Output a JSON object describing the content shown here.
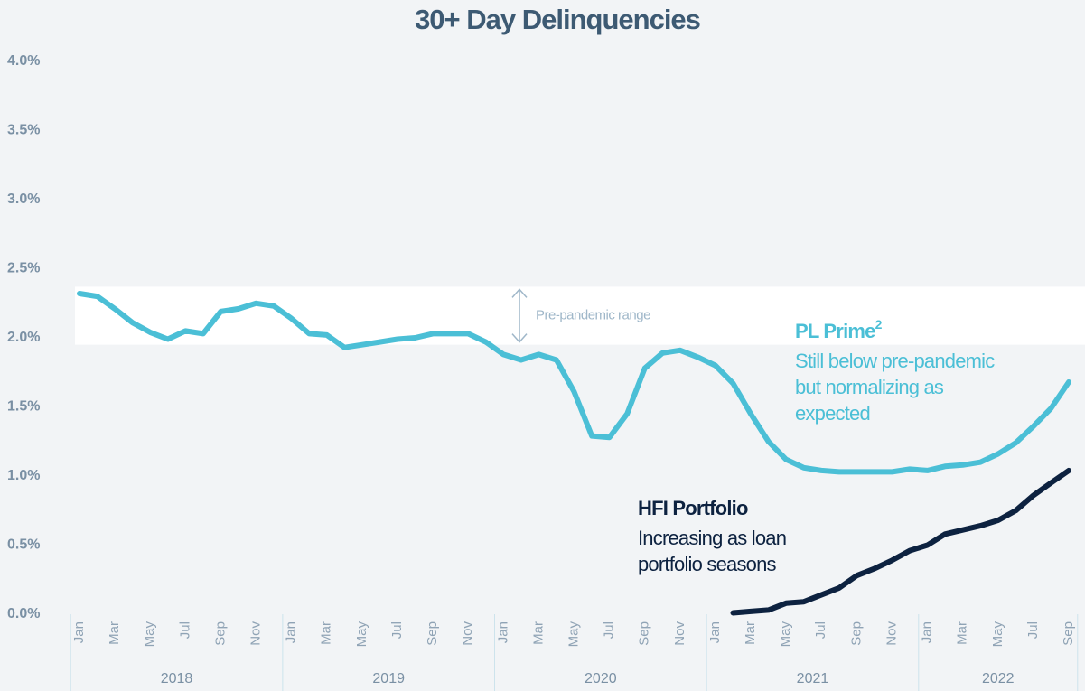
{
  "chart_data": {
    "type": "line",
    "title": "30+ Day Delinquencies",
    "categories": [
      "Jan",
      null,
      "Mar",
      null,
      "May",
      null,
      "Jul",
      null,
      "Sep",
      null,
      "Nov",
      null,
      "Jan",
      null,
      "Mar",
      null,
      "May",
      null,
      "Jul",
      null,
      "Sep",
      null,
      "Nov",
      null,
      "Jan",
      null,
      "Mar",
      null,
      "May",
      null,
      "Jul",
      null,
      "Sep",
      null,
      "Nov",
      null,
      "Jan",
      null,
      "Mar",
      null,
      "May",
      null,
      "Jul",
      null,
      "Sep",
      null,
      "Nov",
      null,
      "Jan",
      null,
      "Mar",
      null,
      "May",
      null,
      "Jul",
      null,
      "Sep"
    ],
    "year_groups": [
      "2018",
      "2019",
      "2020",
      "2021",
      "2022"
    ],
    "series": [
      {
        "name": "PL Prime",
        "name_sup": "2",
        "color": "#4bbfd6",
        "description": [
          "Still below pre-pandemic",
          "but normalizing as",
          "expected"
        ],
        "values": [
          2.32,
          2.3,
          2.21,
          2.11,
          2.04,
          1.99,
          2.05,
          2.03,
          2.19,
          2.21,
          2.25,
          2.23,
          2.14,
          2.03,
          2.02,
          1.93,
          1.95,
          1.97,
          1.99,
          2.0,
          2.03,
          2.03,
          2.03,
          1.97,
          1.88,
          1.84,
          1.88,
          1.84,
          1.61,
          1.29,
          1.28,
          1.45,
          1.78,
          1.89,
          1.91,
          1.86,
          1.8,
          1.67,
          1.45,
          1.25,
          1.12,
          1.06,
          1.04,
          1.03,
          1.03,
          1.03,
          1.03,
          1.05,
          1.04,
          1.07,
          1.08,
          1.1,
          1.16,
          1.24,
          1.36,
          1.49,
          1.68
        ]
      },
      {
        "name": "HFI Portfolio",
        "color": "#0d2240",
        "description": [
          "Increasing as loan",
          "portfolio seasons"
        ],
        "values": [
          null,
          null,
          null,
          null,
          null,
          null,
          null,
          null,
          null,
          null,
          null,
          null,
          null,
          null,
          null,
          null,
          null,
          null,
          null,
          null,
          null,
          null,
          null,
          null,
          null,
          null,
          null,
          null,
          null,
          null,
          null,
          null,
          null,
          null,
          null,
          null,
          null,
          0.01,
          0.02,
          0.03,
          0.08,
          0.09,
          0.14,
          0.19,
          0.28,
          0.33,
          0.39,
          0.46,
          0.5,
          0.58,
          0.61,
          0.64,
          0.68,
          0.75,
          0.86,
          0.95,
          1.04
        ]
      }
    ],
    "range_band": {
      "label": "Pre-pandemic range",
      "values": [
        1.95,
        2.37
      ]
    },
    "ylim": [
      0,
      4
    ],
    "yticks": [
      {
        "value": 0,
        "label": "0.0%"
      },
      {
        "value": 0.5,
        "label": "0.5%"
      },
      {
        "value": 1,
        "label": "1.0%"
      },
      {
        "value": 1.5,
        "label": "1.5%"
      },
      {
        "value": 2,
        "label": "2.0%"
      },
      {
        "value": 2.5,
        "label": "2.5%"
      },
      {
        "value": 3,
        "label": "3.0%"
      },
      {
        "value": 3.5,
        "label": "3.5%"
      },
      {
        "value": 4,
        "label": "4.0%"
      }
    ]
  }
}
